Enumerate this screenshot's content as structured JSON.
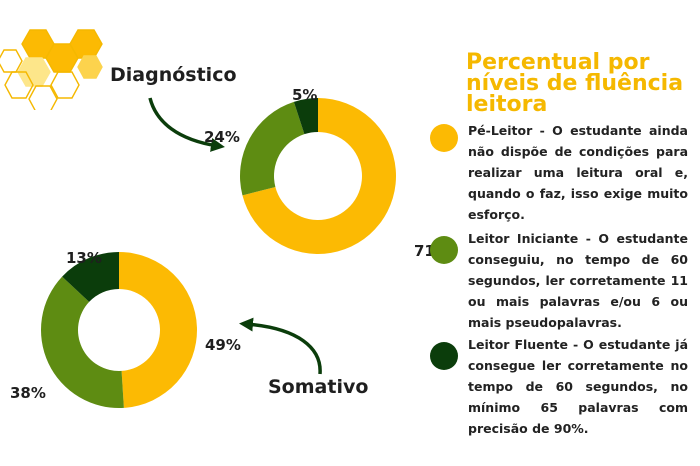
{
  "colors": {
    "pe_leitor": "#FCBA03",
    "iniciante": "#5E8C12",
    "fluente": "#0B3D0B",
    "title": "#F5B800",
    "arrow": "#0B3D0B"
  },
  "chart_data": [
    {
      "type": "pie",
      "variant": "donut",
      "title": "Diagnóstico",
      "categories": [
        "Pé-Leitor",
        "Leitor Iniciante",
        "Leitor Fluente"
      ],
      "values": [
        71,
        24,
        5
      ],
      "labels": [
        "71%",
        "24%",
        "5%"
      ]
    },
    {
      "type": "pie",
      "variant": "donut",
      "title": "Somativo",
      "categories": [
        "Pé-Leitor",
        "Leitor Iniciante",
        "Leitor Fluente"
      ],
      "values": [
        49,
        38,
        13
      ],
      "labels": [
        "49%",
        "38%",
        "13%"
      ]
    }
  ],
  "legend": {
    "title": "Percentual por níveis de fluência leitora",
    "items": [
      {
        "text": "Pé-Leitor - O estudante ainda não dispõe de condições para realizar uma leitura oral e, quando o faz, isso exige muito esforço."
      },
      {
        "text": "Leitor Iniciante - O estudante conseguiu, no tempo de 60 segundos, ler corretamente 11 ou mais palavras e/ou 6 ou mais pseudopalavras."
      },
      {
        "text": "Leitor Fluente - O estudante já consegue ler corretamente no tempo de 60 segundos, no mínimo 65 palavras com precisão de 90%."
      }
    ]
  }
}
